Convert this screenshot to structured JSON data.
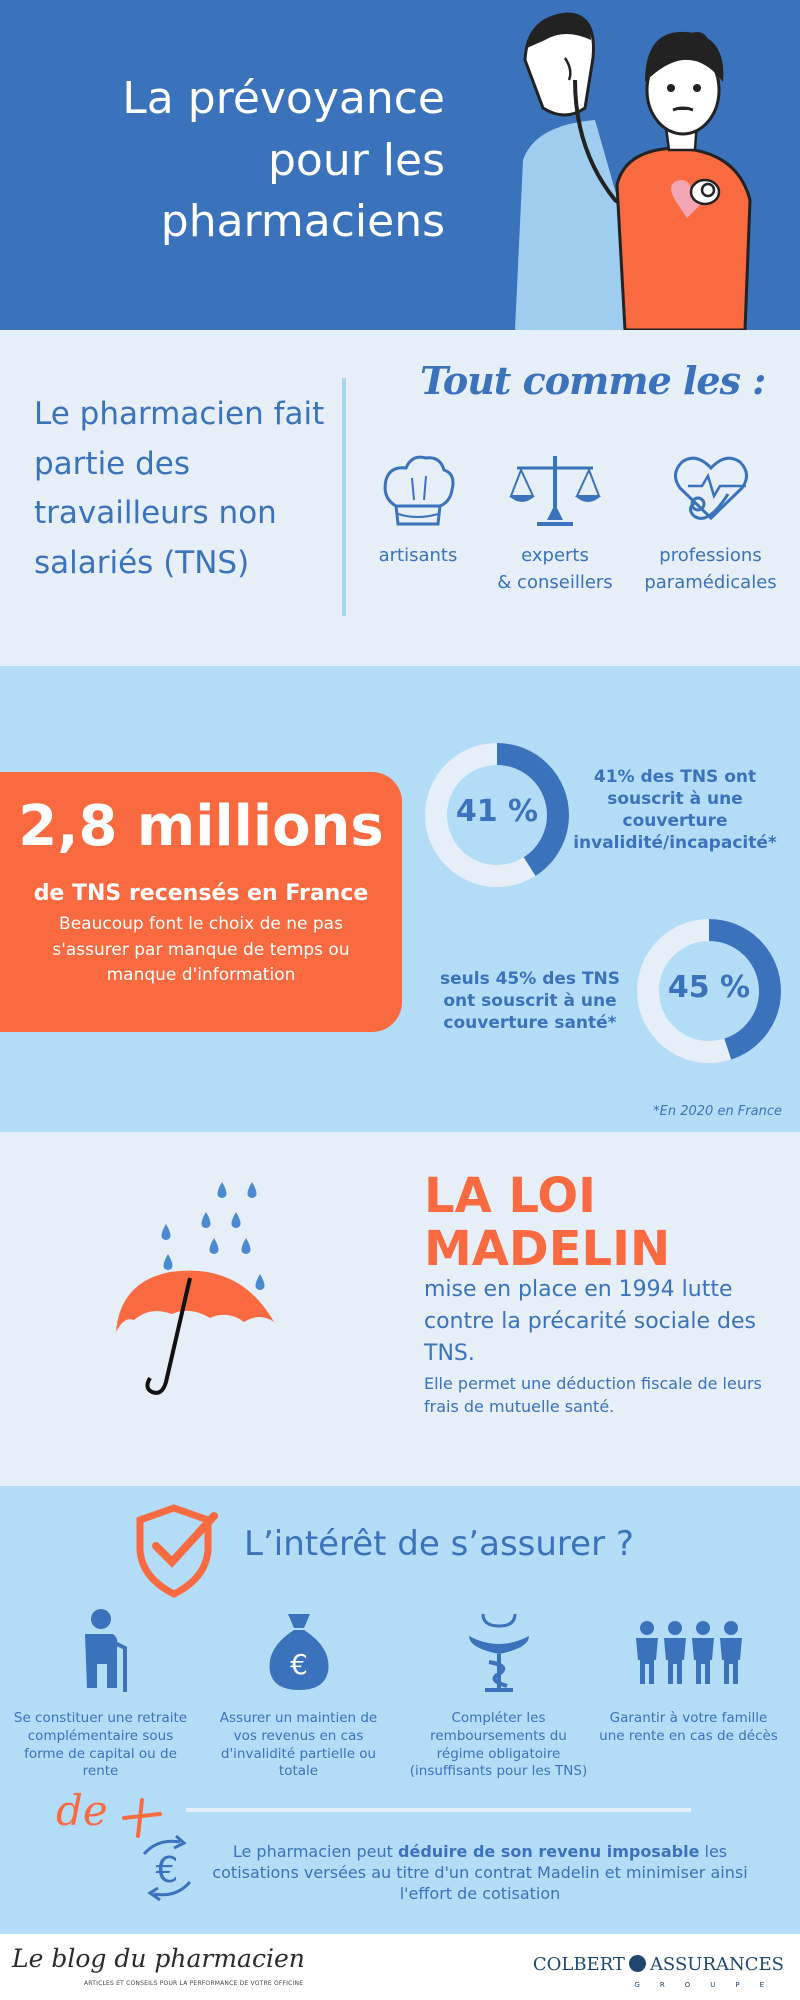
{
  "header": {
    "title_lines": [
      "La prévoyance",
      "pour les",
      "pharmaciens"
    ]
  },
  "tns": {
    "text": "Le pharmacien fait partie des travailleurs non salariés (TNS)",
    "like_heading": "Tout comme les :",
    "professions": [
      {
        "label": "artisants",
        "icon": "chef-hat-icon"
      },
      {
        "label_lines": [
          "experts",
          "& conseillers"
        ],
        "icon": "scales-icon"
      },
      {
        "label_lines": [
          "professions",
          "paramédicales"
        ],
        "icon": "stethoscope-heart-icon"
      }
    ]
  },
  "stats": {
    "big_number": "2,8 millions",
    "big_caption": "de TNS recensés en France",
    "big_desc": "Beaucoup font le choix de ne pas s'assurer par manque de temps ou manque d'information",
    "donuts": [
      {
        "percent": 41,
        "label": "41 %",
        "text": "41% des TNS ont souscrit à une couverture invalidité/incapacité*"
      },
      {
        "percent": 45,
        "label": "45 %",
        "text": "seuls 45% des TNS ont souscrit à une couverture santé*"
      }
    ],
    "footnote": "*En 2020 en France"
  },
  "loi": {
    "title_lines": [
      "LA LOI",
      "MADELIN"
    ],
    "desc": "mise en place en 1994 lutte contre la précarité sociale des TNS.",
    "desc_small": "Elle permet une déduction fiscale de leurs frais de mutuelle santé.",
    "icon": "umbrella-rain-icon"
  },
  "interet": {
    "heading": "L’intérêt de s’assurer ?",
    "benefits": [
      {
        "icon": "elderly-person-icon",
        "text": "Se constituer une retraite complémentaire sous forme de capital ou de rente"
      },
      {
        "icon": "money-bag-icon",
        "text": "Assurer un maintien de vos revenus en cas d'invalidité partielle ou totale"
      },
      {
        "icon": "pharmacy-caduceus-icon",
        "text": "Compléter les remboursements du régime obligatoire (insuffisants pour les TNS)"
      },
      {
        "icon": "family-icon",
        "text": "Garantir à votre famille une rente en cas de décès"
      }
    ],
    "plus_label": "de",
    "final_parts": {
      "a": "Le pharmacien peut ",
      "b": "déduire de son revenu imposable",
      "c": " les cotisations versées au titre d'un contrat Madelin et minimiser ainsi l'effort de cotisation"
    }
  },
  "footer": {
    "blog_name": "Le blog du pharmacien",
    "blog_tagline": "ARTICLES ET CONSEILS POUR LA PERFORMANCE DE VOTRE OFFICINE",
    "brand_left": "COLBERT",
    "brand_right": "ASSURANCES",
    "brand_sub": "GROUPE"
  },
  "colors": {
    "primary_blue": "#3a72bb",
    "light_blue": "#b3dcf6",
    "pale_blue": "#e6eef8",
    "orange": "#fa6a40"
  }
}
